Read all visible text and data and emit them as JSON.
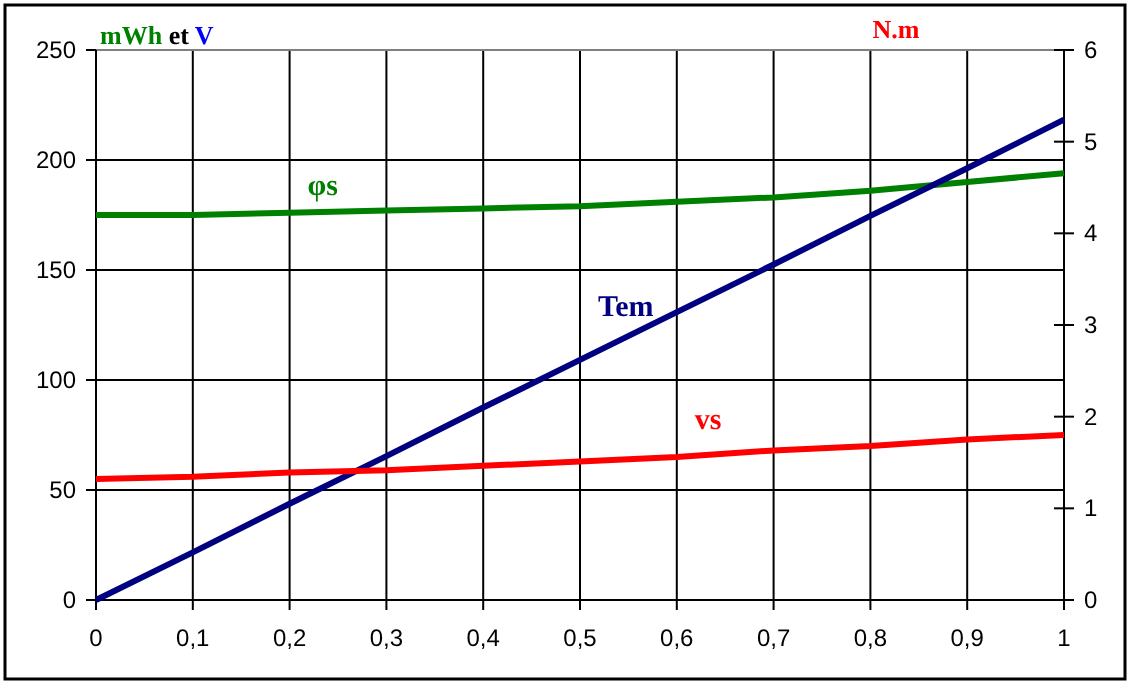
{
  "chart_data": {
    "type": "line",
    "ylabel": "mWh et V",
    "y2label": "N.m",
    "x": [
      0,
      0.1,
      0.2,
      0.3,
      0.4,
      0.5,
      0.6,
      0.7,
      0.8,
      0.9,
      1
    ],
    "series": [
      {
        "name": "φs",
        "color": "#008000",
        "values": [
          175,
          175,
          176,
          177,
          178,
          179,
          181,
          183,
          186,
          190,
          194
        ]
      },
      {
        "name": "Tem",
        "color": "#000080",
        "axis": "y2",
        "values": [
          0,
          0.52,
          1.05,
          1.57,
          2.1,
          2.62,
          3.14,
          3.66,
          4.19,
          4.71,
          5.24
        ]
      },
      {
        "name": "vs",
        "color": "#ff0000",
        "values": [
          55,
          56,
          58,
          59,
          61,
          63,
          65,
          68,
          70,
          73,
          75
        ]
      }
    ],
    "xlim": [
      0,
      1
    ],
    "xticks": [
      {
        "value": 0,
        "label": "0"
      },
      {
        "value": 0.1,
        "label": "0,1"
      },
      {
        "value": 0.2,
        "label": "0,2"
      },
      {
        "value": 0.3,
        "label": "0,3"
      },
      {
        "value": 0.4,
        "label": "0,4"
      },
      {
        "value": 0.5,
        "label": "0,5"
      },
      {
        "value": 0.6,
        "label": "0,6"
      },
      {
        "value": 0.7,
        "label": "0,7"
      },
      {
        "value": 0.8,
        "label": "0,8"
      },
      {
        "value": 0.9,
        "label": "0,9"
      },
      {
        "value": 1,
        "label": "1"
      }
    ],
    "ylim": [
      0,
      250
    ],
    "yticks": [
      0,
      50,
      100,
      150,
      200,
      250
    ],
    "y2lim": [
      0,
      6
    ],
    "y2ticks": [
      0,
      1,
      2,
      3,
      4,
      5,
      6
    ],
    "grid": true,
    "marker": "none",
    "line_style": "solid"
  }
}
